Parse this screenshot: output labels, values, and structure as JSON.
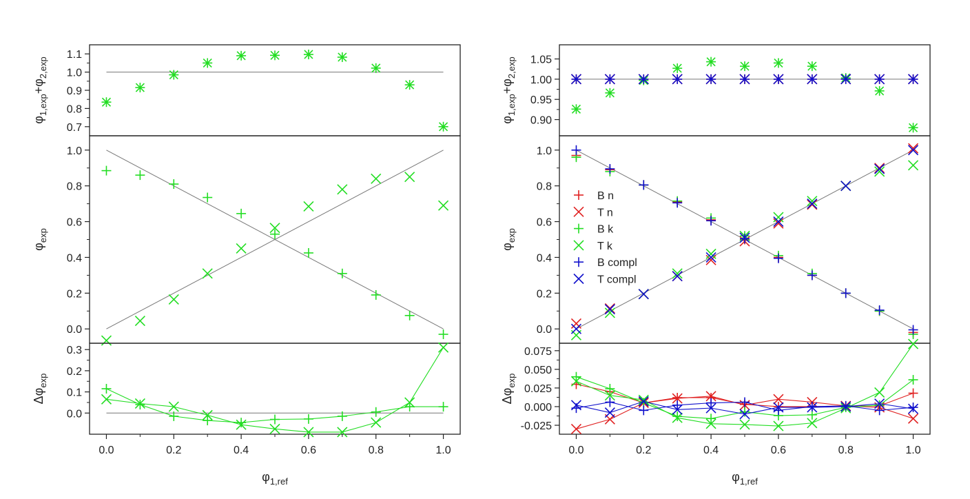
{
  "chart_data": [
    {
      "type": "scatter",
      "panel": "left",
      "x_label": "φ1,ref",
      "x_ticks": [
        "0.0",
        "0.2",
        "0.4",
        "0.6",
        "0.8",
        "1.0"
      ],
      "xlim": [
        -0.05,
        1.05
      ],
      "subplots": [
        {
          "id": "sum",
          "ylabel": "φ1,exp+φ2,exp",
          "ylim": [
            0.65,
            1.15
          ],
          "ticks": [
            "0.7",
            "0.8",
            "0.9",
            "1.0",
            "1.1"
          ],
          "tick_values": [
            0.7,
            0.8,
            0.9,
            1.0,
            1.1
          ],
          "reference_line": [
            [
              0,
              1.0
            ],
            [
              1,
              1.0
            ]
          ],
          "series": [
            {
              "marker": "star",
              "color": "#22dd22",
              "x": [
                0,
                0.1,
                0.2,
                0.3,
                0.4,
                0.5,
                0.6,
                0.7,
                0.8,
                0.9,
                1.0
              ],
              "y": [
                0.835,
                0.915,
                0.985,
                1.05,
                1.09,
                1.092,
                1.097,
                1.082,
                1.022,
                0.93,
                0.7
              ]
            }
          ]
        },
        {
          "id": "phi",
          "ylabel": "φexp",
          "ylim": [
            -0.08,
            1.08
          ],
          "ticks": [
            "0.0",
            "0.2",
            "0.4",
            "0.6",
            "0.8",
            "1.0"
          ],
          "tick_values": [
            0,
            0.2,
            0.4,
            0.6,
            0.8,
            1.0
          ],
          "reference_lines": [
            [
              [
                0,
                1
              ],
              [
                1,
                0
              ]
            ],
            [
              [
                0,
                0
              ],
              [
                1,
                1
              ]
            ]
          ],
          "series": [
            {
              "marker": "plus",
              "color": "#22dd22",
              "x": [
                0,
                0.1,
                0.2,
                0.3,
                0.4,
                0.5,
                0.6,
                0.7,
                0.8,
                0.9,
                1.0
              ],
              "y": [
                0.885,
                0.86,
                0.81,
                0.735,
                0.645,
                0.53,
                0.425,
                0.31,
                0.19,
                0.075,
                -0.03
              ]
            },
            {
              "marker": "x",
              "color": "#22dd22",
              "x": [
                0,
                0.1,
                0.2,
                0.3,
                0.4,
                0.5,
                0.6,
                0.7,
                0.8,
                0.9,
                1.0
              ],
              "y": [
                -0.065,
                0.045,
                0.165,
                0.31,
                0.45,
                0.565,
                0.685,
                0.78,
                0.84,
                0.85,
                0.69
              ]
            }
          ]
        },
        {
          "id": "delta",
          "ylabel": "Δφexp",
          "ylim": [
            -0.1,
            0.33
          ],
          "ticks": [
            "0.0",
            "0.1",
            "0.2",
            "0.3"
          ],
          "tick_values": [
            0,
            0.1,
            0.2,
            0.3
          ],
          "reference_line": [
            [
              0,
              0
            ],
            [
              1,
              0
            ]
          ],
          "series": [
            {
              "marker": "plus",
              "color": "#22dd22",
              "connected": true,
              "x": [
                0,
                0.1,
                0.2,
                0.3,
                0.4,
                0.5,
                0.6,
                0.7,
                0.8,
                0.9,
                1.0
              ],
              "y": [
                0.115,
                0.04,
                -0.015,
                -0.035,
                -0.045,
                -0.03,
                -0.028,
                -0.015,
                0.005,
                0.03,
                0.03
              ]
            },
            {
              "marker": "x",
              "color": "#22dd22",
              "connected": true,
              "x": [
                0,
                0.1,
                0.2,
                0.3,
                0.4,
                0.5,
                0.6,
                0.7,
                0.8,
                0.9,
                1.0
              ],
              "y": [
                0.065,
                0.045,
                0.03,
                -0.01,
                -0.055,
                -0.075,
                -0.09,
                -0.09,
                -0.045,
                0.05,
                0.31
              ]
            }
          ]
        }
      ]
    },
    {
      "type": "scatter",
      "panel": "right",
      "x_label": "φ1,ref",
      "x_ticks": [
        "0.0",
        "0.2",
        "0.4",
        "0.6",
        "0.8",
        "1.0"
      ],
      "xlim": [
        -0.05,
        1.05
      ],
      "legend": {
        "placement": "left-middle",
        "entries": [
          {
            "label": "B n",
            "marker": "plus",
            "color": "#e02020"
          },
          {
            "label": "T n",
            "marker": "x",
            "color": "#e02020"
          },
          {
            "label": "B k",
            "marker": "plus",
            "color": "#22dd22"
          },
          {
            "label": "T k",
            "marker": "x",
            "color": "#22dd22"
          },
          {
            "label": "B compl",
            "marker": "plus",
            "color": "#1010cc"
          },
          {
            "label": "T compl",
            "marker": "x",
            "color": "#1010cc"
          }
        ]
      },
      "subplots": [
        {
          "id": "sum",
          "ylabel": "φ1,exp+φ2,exp",
          "ylim": [
            0.86,
            1.085
          ],
          "ticks": [
            "0.90",
            "0.95",
            "1.00",
            "1.05"
          ],
          "tick_values": [
            0.9,
            0.95,
            1.0,
            1.05
          ],
          "reference_line": [
            [
              0,
              1.0
            ],
            [
              1,
              1.0
            ]
          ],
          "series": [
            {
              "marker": "plus",
              "color": "#e02020",
              "x": [
                0,
                0.1,
                0.2,
                0.3,
                0.4,
                0.5,
                0.6,
                0.7,
                0.8,
                0.9,
                1.0
              ],
              "y": [
                1.0,
                1.0,
                1.0,
                1.0,
                1.0,
                1.0,
                1.0,
                1.0,
                1.0,
                1.0,
                1.0
              ]
            },
            {
              "marker": "x",
              "color": "#e02020",
              "x": [
                0,
                0.1,
                0.2,
                0.3,
                0.4,
                0.5,
                0.6,
                0.7,
                0.8,
                0.9,
                1.0
              ],
              "y": [
                1.0,
                1.0,
                1.0,
                1.0,
                1.0,
                1.0,
                1.0,
                1.0,
                1.0,
                1.0,
                1.0
              ]
            },
            {
              "marker": "star",
              "color": "#22dd22",
              "x": [
                0,
                0.1,
                0.2,
                0.3,
                0.4,
                0.5,
                0.6,
                0.7,
                0.8,
                0.9,
                1.0
              ],
              "y": [
                0.926,
                0.966,
                0.997,
                1.027,
                1.043,
                1.032,
                1.04,
                1.032,
                1.003,
                0.971,
                0.88
              ]
            },
            {
              "marker": "plus",
              "color": "#1010cc",
              "x": [
                0,
                0.1,
                0.2,
                0.3,
                0.4,
                0.5,
                0.6,
                0.7,
                0.8,
                0.9,
                1.0
              ],
              "y": [
                1.0,
                1.0,
                1.0,
                1.0,
                1.0,
                1.0,
                1.0,
                1.0,
                1.0,
                1.0,
                1.0
              ]
            },
            {
              "marker": "x",
              "color": "#1010cc",
              "x": [
                0,
                0.1,
                0.2,
                0.3,
                0.4,
                0.5,
                0.6,
                0.7,
                0.8,
                0.9,
                1.0
              ],
              "y": [
                1.0,
                1.0,
                1.0,
                1.0,
                1.0,
                1.0,
                1.0,
                1.0,
                1.0,
                1.0,
                1.0
              ]
            }
          ]
        },
        {
          "id": "phi",
          "ylabel": "φexp",
          "ylim": [
            -0.08,
            1.08
          ],
          "ticks": [
            "0.0",
            "0.2",
            "0.4",
            "0.6",
            "0.8",
            "1.0"
          ],
          "tick_values": [
            0,
            0.2,
            0.4,
            0.6,
            0.8,
            1.0
          ],
          "reference_lines": [
            [
              [
                0,
                1
              ],
              [
                1,
                0
              ]
            ],
            [
              [
                0,
                0
              ],
              [
                1,
                1
              ]
            ]
          ],
          "series": [
            {
              "marker": "plus",
              "color": "#e02020",
              "x": [
                0,
                0.1,
                0.2,
                0.3,
                0.4,
                0.5,
                0.6,
                0.7,
                0.8,
                0.9,
                1.0
              ],
              "y": [
                0.97,
                0.89,
                0.805,
                0.71,
                0.61,
                0.5,
                0.4,
                0.3,
                0.2,
                0.1,
                -0.02
              ]
            },
            {
              "marker": "x",
              "color": "#e02020",
              "x": [
                0,
                0.1,
                0.2,
                0.3,
                0.4,
                0.5,
                0.6,
                0.7,
                0.8,
                0.9,
                1.0
              ],
              "y": [
                0.03,
                0.115,
                0.195,
                0.295,
                0.385,
                0.49,
                0.59,
                0.695,
                0.8,
                0.9,
                1.01
              ]
            },
            {
              "marker": "plus",
              "color": "#22dd22",
              "x": [
                0,
                0.1,
                0.2,
                0.3,
                0.4,
                0.5,
                0.6,
                0.7,
                0.8,
                0.9,
                1.0
              ],
              "y": [
                0.96,
                0.88,
                0.805,
                0.715,
                0.62,
                0.52,
                0.41,
                0.31,
                0.2,
                0.1,
                -0.03
              ]
            },
            {
              "marker": "x",
              "color": "#22dd22",
              "x": [
                0,
                0.1,
                0.2,
                0.3,
                0.4,
                0.5,
                0.6,
                0.7,
                0.8,
                0.9,
                1.0
              ],
              "y": [
                -0.035,
                0.09,
                0.195,
                0.31,
                0.42,
                0.52,
                0.625,
                0.715,
                0.8,
                0.88,
                0.915
              ]
            },
            {
              "marker": "plus",
              "color": "#1010cc",
              "x": [
                0,
                0.1,
                0.2,
                0.3,
                0.4,
                0.5,
                0.6,
                0.7,
                0.8,
                0.9,
                1.0
              ],
              "y": [
                1.0,
                0.895,
                0.805,
                0.705,
                0.605,
                0.505,
                0.395,
                0.3,
                0.2,
                0.105,
                -0.005
              ]
            },
            {
              "marker": "x",
              "color": "#1010cc",
              "x": [
                0,
                0.1,
                0.2,
                0.3,
                0.4,
                0.5,
                0.6,
                0.7,
                0.8,
                0.9,
                1.0
              ],
              "y": [
                0.0,
                0.11,
                0.195,
                0.295,
                0.4,
                0.51,
                0.6,
                0.7,
                0.8,
                0.895,
                1.0
              ]
            }
          ]
        },
        {
          "id": "delta",
          "ylabel": "Δφexp",
          "ylim": [
            -0.037,
            0.085
          ],
          "ticks": [
            "-0.025",
            "0.000",
            "0.025",
            "0.050",
            "0.075"
          ],
          "tick_values": [
            -0.025,
            0,
            0.025,
            0.05,
            0.075
          ],
          "series": [
            {
              "marker": "plus",
              "color": "#e02020",
              "connected": true,
              "x": [
                0,
                0.1,
                0.2,
                0.3,
                0.4,
                0.5,
                0.6,
                0.7,
                0.8,
                0.9,
                1.0
              ],
              "y": [
                0.03,
                0.02,
                0.005,
                0.012,
                0.012,
                0.003,
                0.0,
                0.0,
                0.001,
                0.001,
                0.018
              ]
            },
            {
              "marker": "x",
              "color": "#e02020",
              "connected": true,
              "x": [
                0,
                0.1,
                0.2,
                0.3,
                0.4,
                0.5,
                0.6,
                0.7,
                0.8,
                0.9,
                1.0
              ],
              "y": [
                -0.03,
                -0.017,
                0.005,
                0.011,
                0.014,
                0.002,
                0.01,
                0.006,
                0.001,
                -0.001,
                -0.016
              ]
            },
            {
              "marker": "plus",
              "color": "#22dd22",
              "connected": true,
              "x": [
                0,
                0.1,
                0.2,
                0.3,
                0.4,
                0.5,
                0.6,
                0.7,
                0.8,
                0.9,
                1.0
              ],
              "y": [
                0.04,
                0.024,
                0.005,
                -0.013,
                -0.016,
                -0.007,
                -0.012,
                -0.011,
                -0.001,
                0.002,
                0.036
              ]
            },
            {
              "marker": "x",
              "color": "#22dd22",
              "connected": true,
              "x": [
                0,
                0.1,
                0.2,
                0.3,
                0.4,
                0.5,
                0.6,
                0.7,
                0.8,
                0.9,
                1.0
              ],
              "y": [
                0.034,
                0.015,
                0.009,
                -0.015,
                -0.023,
                -0.024,
                -0.026,
                -0.022,
                -0.002,
                0.019,
                0.084
              ]
            },
            {
              "marker": "plus",
              "color": "#1010cc",
              "connected": true,
              "x": [
                0,
                0.1,
                0.2,
                0.3,
                0.4,
                0.5,
                0.6,
                0.7,
                0.8,
                0.9,
                1.0
              ],
              "y": [
                -0.002,
                0.006,
                -0.005,
                0.002,
                0.005,
                0.006,
                -0.005,
                0.0,
                0.001,
                -0.005,
                -0.001
              ]
            },
            {
              "marker": "x",
              "color": "#1010cc",
              "connected": true,
              "x": [
                0,
                0.1,
                0.2,
                0.3,
                0.4,
                0.5,
                0.6,
                0.7,
                0.8,
                0.9,
                1.0
              ],
              "y": [
                0.002,
                -0.008,
                0.007,
                -0.004,
                -0.002,
                -0.01,
                -0.001,
                -0.001,
                0.0,
                0.004,
                -0.003
              ]
            }
          ]
        }
      ]
    }
  ]
}
